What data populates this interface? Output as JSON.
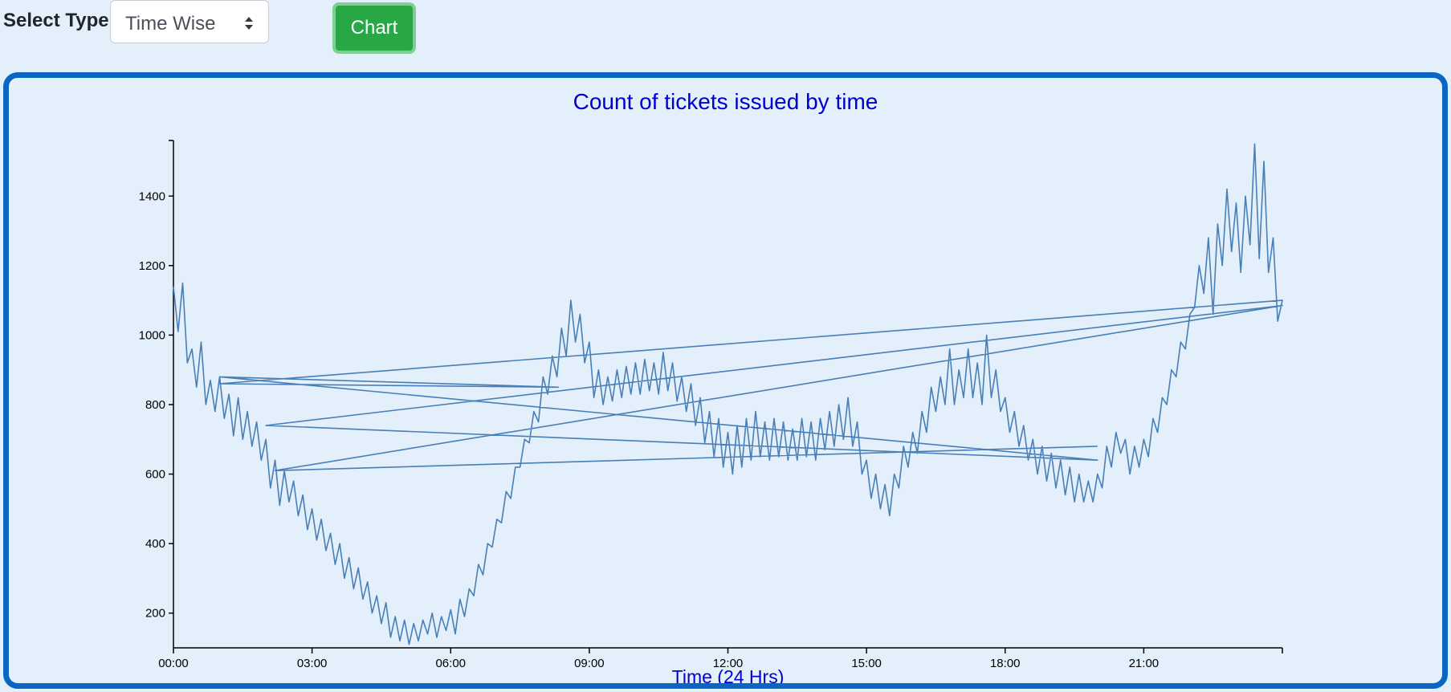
{
  "controls": {
    "select_label": "Select Type",
    "select_value": "Time Wise",
    "chart_button": "Chart"
  },
  "colors": {
    "background": "#e3f0fc",
    "panel_border": "#0a66c2",
    "title": "#0000cc",
    "line": "#4a7fb5",
    "button": "#28a745"
  },
  "chart_data": {
    "type": "line",
    "title": "Count of tickets issued by time",
    "xlabel": "Time (24 Hrs)",
    "ylabel": "",
    "x_unit": "minutes since 00:00",
    "xlim": [
      0,
      1440
    ],
    "ylim": [
      100,
      1560
    ],
    "x_ticks": [
      {
        "value": 0,
        "label": "00:00"
      },
      {
        "value": 180,
        "label": "03:00"
      },
      {
        "value": 360,
        "label": "06:00"
      },
      {
        "value": 540,
        "label": "09:00"
      },
      {
        "value": 720,
        "label": "12:00"
      },
      {
        "value": 900,
        "label": "15:00"
      },
      {
        "value": 1080,
        "label": "18:00"
      },
      {
        "value": 1260,
        "label": "21:00"
      }
    ],
    "y_ticks": [
      200,
      400,
      600,
      800,
      1000,
      1200,
      1400
    ],
    "grid": false,
    "series": [
      {
        "values": [
          [
            0,
            1140
          ],
          [
            6,
            1010
          ],
          [
            12,
            1150
          ],
          [
            18,
            920
          ],
          [
            24,
            960
          ],
          [
            30,
            850
          ],
          [
            36,
            980
          ],
          [
            42,
            800
          ],
          [
            48,
            870
          ],
          [
            54,
            780
          ],
          [
            60,
            880
          ],
          [
            66,
            760
          ],
          [
            72,
            830
          ],
          [
            78,
            710
          ],
          [
            84,
            820
          ],
          [
            90,
            700
          ],
          [
            96,
            780
          ],
          [
            102,
            680
          ],
          [
            108,
            750
          ],
          [
            114,
            640
          ],
          [
            120,
            700
          ],
          [
            126,
            560
          ],
          [
            132,
            640
          ],
          [
            138,
            510
          ],
          [
            144,
            610
          ],
          [
            150,
            520
          ],
          [
            156,
            580
          ],
          [
            162,
            480
          ],
          [
            168,
            540
          ],
          [
            174,
            440
          ],
          [
            180,
            500
          ],
          [
            186,
            410
          ],
          [
            192,
            470
          ],
          [
            198,
            380
          ],
          [
            204,
            430
          ],
          [
            210,
            340
          ],
          [
            216,
            400
          ],
          [
            222,
            300
          ],
          [
            228,
            360
          ],
          [
            234,
            270
          ],
          [
            240,
            330
          ],
          [
            246,
            240
          ],
          [
            252,
            290
          ],
          [
            258,
            200
          ],
          [
            264,
            250
          ],
          [
            270,
            170
          ],
          [
            276,
            230
          ],
          [
            282,
            130
          ],
          [
            288,
            190
          ],
          [
            294,
            120
          ],
          [
            300,
            180
          ],
          [
            306,
            110
          ],
          [
            312,
            170
          ],
          [
            318,
            120
          ],
          [
            324,
            180
          ],
          [
            330,
            140
          ],
          [
            336,
            200
          ],
          [
            342,
            130
          ],
          [
            348,
            190
          ],
          [
            354,
            150
          ],
          [
            360,
            210
          ],
          [
            366,
            140
          ],
          [
            372,
            240
          ],
          [
            378,
            190
          ],
          [
            384,
            270
          ],
          [
            390,
            250
          ],
          [
            396,
            340
          ],
          [
            402,
            310
          ],
          [
            408,
            400
          ],
          [
            414,
            390
          ],
          [
            420,
            470
          ],
          [
            426,
            460
          ],
          [
            432,
            550
          ],
          [
            438,
            530
          ],
          [
            444,
            620
          ],
          [
            450,
            620
          ],
          [
            456,
            700
          ],
          [
            462,
            690
          ],
          [
            468,
            780
          ],
          [
            474,
            750
          ],
          [
            480,
            880
          ],
          [
            486,
            830
          ],
          [
            492,
            940
          ],
          [
            498,
            880
          ],
          [
            504,
            1020
          ],
          [
            510,
            940
          ],
          [
            516,
            1100
          ],
          [
            522,
            980
          ],
          [
            528,
            1060
          ],
          [
            534,
            920
          ],
          [
            540,
            980
          ],
          [
            546,
            820
          ],
          [
            552,
            900
          ],
          [
            558,
            800
          ],
          [
            564,
            880
          ],
          [
            570,
            810
          ],
          [
            576,
            900
          ],
          [
            582,
            820
          ],
          [
            588,
            910
          ],
          [
            594,
            830
          ],
          [
            600,
            920
          ],
          [
            606,
            830
          ],
          [
            612,
            930
          ],
          [
            618,
            840
          ],
          [
            624,
            920
          ],
          [
            630,
            830
          ],
          [
            636,
            950
          ],
          [
            642,
            840
          ],
          [
            648,
            920
          ],
          [
            654,
            810
          ],
          [
            660,
            880
          ],
          [
            666,
            780
          ],
          [
            672,
            860
          ],
          [
            678,
            740
          ],
          [
            684,
            820
          ],
          [
            690,
            690
          ],
          [
            696,
            780
          ],
          [
            702,
            650
          ],
          [
            708,
            760
          ],
          [
            714,
            620
          ],
          [
            720,
            720
          ],
          [
            726,
            600
          ],
          [
            732,
            740
          ],
          [
            738,
            620
          ],
          [
            744,
            760
          ],
          [
            750,
            640
          ],
          [
            756,
            780
          ],
          [
            762,
            650
          ],
          [
            768,
            750
          ],
          [
            774,
            640
          ],
          [
            780,
            760
          ],
          [
            786,
            650
          ],
          [
            792,
            750
          ],
          [
            798,
            640
          ],
          [
            804,
            730
          ],
          [
            810,
            640
          ],
          [
            816,
            760
          ],
          [
            822,
            650
          ],
          [
            828,
            750
          ],
          [
            834,
            640
          ],
          [
            840,
            760
          ],
          [
            846,
            670
          ],
          [
            852,
            780
          ],
          [
            858,
            680
          ],
          [
            864,
            800
          ],
          [
            870,
            700
          ],
          [
            876,
            820
          ],
          [
            882,
            680
          ],
          [
            888,
            750
          ],
          [
            894,
            600
          ],
          [
            900,
            640
          ],
          [
            906,
            530
          ],
          [
            912,
            600
          ],
          [
            918,
            500
          ],
          [
            924,
            570
          ],
          [
            930,
            480
          ],
          [
            936,
            600
          ],
          [
            942,
            560
          ],
          [
            948,
            680
          ],
          [
            954,
            620
          ],
          [
            960,
            720
          ],
          [
            966,
            660
          ],
          [
            972,
            780
          ],
          [
            978,
            720
          ],
          [
            984,
            850
          ],
          [
            990,
            780
          ],
          [
            996,
            880
          ],
          [
            1002,
            800
          ],
          [
            1008,
            960
          ],
          [
            1014,
            800
          ],
          [
            1020,
            900
          ],
          [
            1026,
            820
          ],
          [
            1032,
            960
          ],
          [
            1038,
            820
          ],
          [
            1044,
            920
          ],
          [
            1050,
            800
          ],
          [
            1056,
            1000
          ],
          [
            1062,
            820
          ],
          [
            1068,
            900
          ],
          [
            1074,
            780
          ],
          [
            1080,
            820
          ],
          [
            1086,
            720
          ],
          [
            1092,
            780
          ],
          [
            1098,
            680
          ],
          [
            1104,
            740
          ],
          [
            1110,
            640
          ],
          [
            1116,
            700
          ],
          [
            1122,
            600
          ],
          [
            1128,
            680
          ],
          [
            1134,
            580
          ],
          [
            1140,
            660
          ],
          [
            1146,
            560
          ],
          [
            1152,
            640
          ],
          [
            1158,
            540
          ],
          [
            1164,
            620
          ],
          [
            1170,
            520
          ],
          [
            1176,
            600
          ],
          [
            1182,
            520
          ],
          [
            1188,
            580
          ],
          [
            1194,
            520
          ],
          [
            1200,
            600
          ],
          [
            1206,
            560
          ],
          [
            1212,
            680
          ],
          [
            1218,
            620
          ],
          [
            1224,
            720
          ],
          [
            1230,
            660
          ],
          [
            1236,
            700
          ],
          [
            1242,
            600
          ],
          [
            1248,
            680
          ],
          [
            1254,
            620
          ],
          [
            1260,
            700
          ],
          [
            1266,
            650
          ],
          [
            1272,
            760
          ],
          [
            1278,
            720
          ],
          [
            1284,
            820
          ],
          [
            1290,
            800
          ],
          [
            1296,
            900
          ],
          [
            1302,
            880
          ],
          [
            1308,
            980
          ],
          [
            1314,
            960
          ],
          [
            1320,
            1060
          ],
          [
            1326,
            1080
          ],
          [
            1332,
            1200
          ],
          [
            1338,
            1120
          ],
          [
            1344,
            1280
          ],
          [
            1350,
            1060
          ],
          [
            1356,
            1320
          ],
          [
            1362,
            1200
          ],
          [
            1368,
            1420
          ],
          [
            1374,
            1240
          ],
          [
            1380,
            1380
          ],
          [
            1386,
            1180
          ],
          [
            1392,
            1400
          ],
          [
            1398,
            1260
          ],
          [
            1404,
            1550
          ],
          [
            1410,
            1220
          ],
          [
            1416,
            1500
          ],
          [
            1422,
            1180
          ],
          [
            1428,
            1280
          ],
          [
            1434,
            1040
          ],
          [
            1440,
            1100
          ],
          [
            60,
            860
          ],
          [
            500,
            850
          ],
          [
            60,
            880
          ],
          [
            1200,
            640
          ],
          [
            120,
            740
          ],
          [
            1440,
            1085
          ],
          [
            132,
            610
          ],
          [
            1200,
            680
          ]
        ]
      }
    ]
  }
}
